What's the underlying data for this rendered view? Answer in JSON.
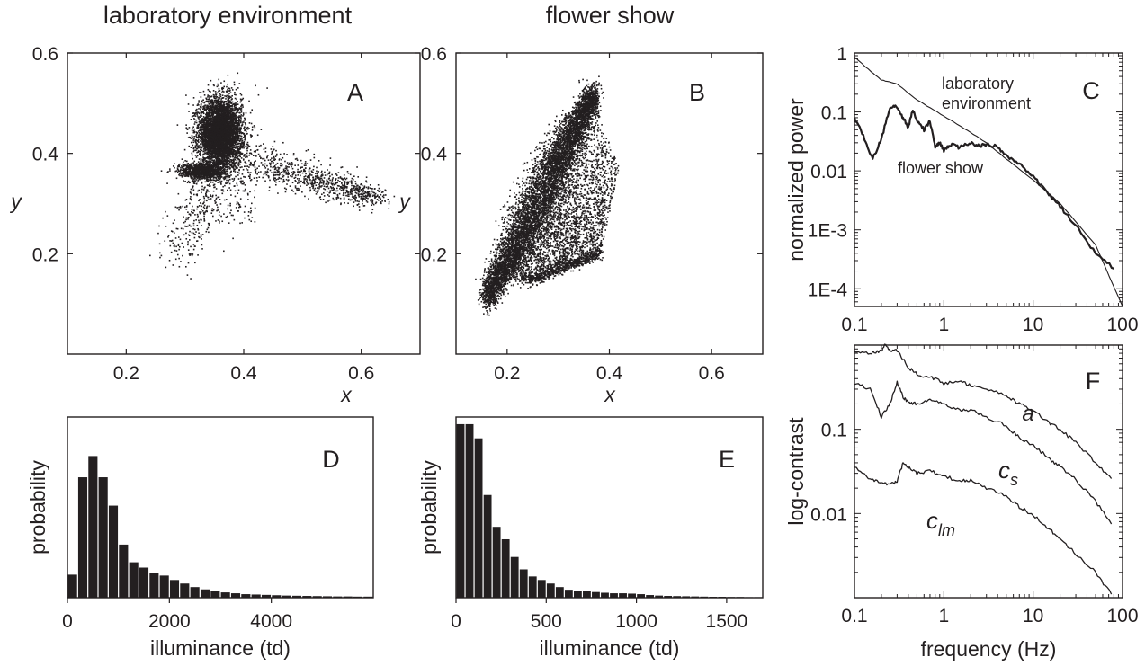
{
  "column_titles": [
    "laboratory environment",
    "flower show"
  ],
  "chart_data": [
    {
      "panel": "A",
      "type": "scatter",
      "column_title": "laboratory environment",
      "xlabel": "x",
      "ylabel": "y",
      "xlim": [
        0.1,
        0.7
      ],
      "ylim": [
        0.0,
        0.6
      ],
      "xticks": [
        0.2,
        0.4,
        0.6
      ],
      "yticks": [
        0.2,
        0.4,
        0.6
      ],
      "tick_labels_x": [
        "0.2",
        "0.4",
        "0.6"
      ],
      "tick_labels_y": [
        "0.2",
        "0.4",
        "0.6"
      ],
      "series": [
        {
          "region": "dense cluster",
          "center": [
            0.36,
            0.44
          ],
          "spread": [
            0.018,
            0.035
          ]
        },
        {
          "region": "base cluster",
          "center": [
            0.33,
            0.365
          ],
          "spread": [
            0.02,
            0.008
          ]
        },
        {
          "region": "tail to red",
          "from": [
            0.38,
            0.4
          ],
          "to": [
            0.63,
            0.31
          ]
        },
        {
          "region": "tail to blue",
          "from": [
            0.35,
            0.36
          ],
          "to": [
            0.28,
            0.19
          ]
        },
        {
          "region": "outliers",
          "points": [
            [
              0.44,
              0.53
            ],
            [
              0.42,
              0.535
            ],
            [
              0.26,
              0.365
            ],
            [
              0.27,
              0.34
            ]
          ]
        }
      ]
    },
    {
      "panel": "B",
      "type": "scatter",
      "column_title": "flower show",
      "xlabel": "x",
      "ylabel": "y",
      "xlim": [
        0.1,
        0.7
      ],
      "ylim": [
        0.0,
        0.6
      ],
      "xticks": [
        0.2,
        0.4,
        0.6
      ],
      "yticks": [
        0.2,
        0.4,
        0.6
      ],
      "tick_labels_x": [
        "0.2",
        "0.4",
        "0.6"
      ],
      "tick_labels_y": [
        "0.2",
        "0.4",
        "0.6"
      ],
      "series": [
        {
          "region": "dense band",
          "from": [
            0.16,
            0.11
          ],
          "to": [
            0.37,
            0.52
          ]
        },
        {
          "region": "spread below band",
          "vertices": [
            [
              0.19,
              0.15
            ],
            [
              0.37,
              0.5
            ],
            [
              0.42,
              0.37
            ],
            [
              0.38,
              0.19
            ],
            [
              0.24,
              0.14
            ]
          ]
        }
      ]
    },
    {
      "panel": "C",
      "type": "line",
      "xlabel": "",
      "ylabel": "normalized power",
      "xscale": "log",
      "yscale": "log",
      "xlim": [
        0.1,
        100
      ],
      "ylim": [
        5e-05,
        1
      ],
      "xticks": [
        0.1,
        1,
        10,
        100
      ],
      "yticks": [
        1,
        0.1,
        0.01,
        0.001,
        0.0001
      ],
      "tick_labels_x": [
        "0.1",
        "1",
        "10",
        "100"
      ],
      "tick_labels_y": [
        "1",
        "0.1",
        "0.01",
        "1E-3",
        "1E-4"
      ],
      "series": [
        {
          "name": "laboratory environment",
          "x": [
            0.1,
            0.15,
            0.2,
            0.3,
            0.5,
            1,
            2,
            3,
            5,
            10,
            20,
            50,
            100
          ],
          "y": [
            0.85,
            0.5,
            0.35,
            0.3,
            0.16,
            0.085,
            0.045,
            0.03,
            0.016,
            0.007,
            0.0028,
            0.00055,
            5e-05
          ]
        },
        {
          "name": "flower show",
          "x": [
            0.1,
            0.13,
            0.16,
            0.2,
            0.25,
            0.3,
            0.35,
            0.4,
            0.45,
            0.5,
            0.6,
            0.7,
            0.8,
            0.9,
            1,
            1.2,
            1.5,
            2,
            2.5,
            3,
            4,
            5,
            7,
            10,
            15,
            20,
            30,
            50,
            80
          ],
          "y": [
            0.08,
            0.035,
            0.016,
            0.035,
            0.12,
            0.12,
            0.08,
            0.055,
            0.11,
            0.07,
            0.05,
            0.07,
            0.025,
            0.03,
            0.022,
            0.028,
            0.025,
            0.03,
            0.027,
            0.028,
            0.026,
            0.018,
            0.013,
            0.008,
            0.004,
            0.0025,
            0.0012,
            0.0004,
            0.00022
          ]
        }
      ]
    },
    {
      "panel": "D",
      "type": "bar",
      "column_title": "laboratory environment",
      "xlabel": "illuminance (td)",
      "ylabel": "probability",
      "xlim": [
        0,
        6000
      ],
      "xticks": [
        0,
        2000,
        4000
      ],
      "tick_labels_x": [
        "0",
        "2000",
        "4000"
      ],
      "bin_width": 200,
      "bin_start": 0,
      "values": [
        0.13,
        0.68,
        0.8,
        0.68,
        0.52,
        0.3,
        0.2,
        0.17,
        0.14,
        0.125,
        0.1,
        0.08,
        0.06,
        0.047,
        0.037,
        0.03,
        0.025,
        0.02,
        0.018,
        0.016,
        0.014,
        0.012,
        0.011,
        0.01,
        0.009,
        0.008,
        0.007,
        0.007,
        0.006,
        0.006
      ]
    },
    {
      "panel": "E",
      "type": "bar",
      "column_title": "flower show",
      "xlabel": "illuminance (td)",
      "ylabel": "probability",
      "xlim": [
        0,
        1700
      ],
      "xticks": [
        0,
        500,
        1000,
        1500
      ],
      "tick_labels_x": [
        "0",
        "500",
        "1000",
        "1500"
      ],
      "bin_width": 50,
      "bin_start": 0,
      "values": [
        0.98,
        0.98,
        0.9,
        0.58,
        0.4,
        0.33,
        0.23,
        0.16,
        0.12,
        0.1,
        0.08,
        0.06,
        0.045,
        0.04,
        0.037,
        0.032,
        0.028,
        0.025,
        0.025,
        0.023,
        0.02,
        0.015,
        0.012,
        0.01,
        0.009,
        0.008,
        0.007,
        0.006,
        0.005,
        0.005,
        0.004,
        0.004,
        0.003,
        0.003
      ]
    },
    {
      "panel": "F",
      "type": "line",
      "xlabel": "frequency (Hz)",
      "ylabel": "log-contrast",
      "xscale": "log",
      "yscale": "log",
      "xlim": [
        0.1,
        100
      ],
      "ylim": [
        0.001,
        1
      ],
      "xticks": [
        0.1,
        1,
        10,
        100
      ],
      "yticks": [
        0.1,
        0.01
      ],
      "tick_labels_x": [
        "0.1",
        "1",
        "10",
        "100"
      ],
      "tick_labels_y": [
        "0.1",
        "0.01"
      ],
      "series": [
        {
          "name": "a",
          "x": [
            0.1,
            0.15,
            0.2,
            0.22,
            0.25,
            0.3,
            0.4,
            0.5,
            0.7,
            1,
            1.5,
            2,
            3,
            5,
            7,
            10,
            15,
            20,
            30,
            50,
            75
          ],
          "y": [
            0.85,
            0.8,
            0.85,
            1.0,
            0.85,
            0.85,
            0.55,
            0.45,
            0.42,
            0.35,
            0.38,
            0.33,
            0.3,
            0.25,
            0.2,
            0.17,
            0.12,
            0.1,
            0.07,
            0.04,
            0.026
          ]
        },
        {
          "name": "c_s",
          "x": [
            0.1,
            0.15,
            0.2,
            0.25,
            0.3,
            0.35,
            0.4,
            0.5,
            0.7,
            1,
            1.5,
            2,
            3,
            5,
            7,
            10,
            15,
            20,
            30,
            50,
            75
          ],
          "y": [
            0.35,
            0.3,
            0.14,
            0.2,
            0.37,
            0.24,
            0.21,
            0.2,
            0.22,
            0.2,
            0.17,
            0.17,
            0.14,
            0.11,
            0.08,
            0.065,
            0.045,
            0.036,
            0.025,
            0.014,
            0.0075
          ]
        },
        {
          "name": "c_lm",
          "x": [
            0.1,
            0.15,
            0.2,
            0.25,
            0.3,
            0.35,
            0.4,
            0.5,
            0.7,
            1,
            1.5,
            2,
            3,
            5,
            7,
            10,
            15,
            20,
            30,
            50,
            75
          ],
          "y": [
            0.035,
            0.026,
            0.023,
            0.022,
            0.024,
            0.04,
            0.035,
            0.03,
            0.032,
            0.028,
            0.024,
            0.025,
            0.02,
            0.016,
            0.012,
            0.0095,
            0.0066,
            0.005,
            0.0033,
            0.002,
            0.0011
          ]
        }
      ]
    }
  ],
  "annotations": {
    "C_lab_label_line1": "laboratory",
    "C_lab_label_line2": "environment",
    "C_flower_label": "flower show",
    "F_a": "a",
    "F_cs_main": "c",
    "F_cs_sub": "s",
    "F_clm_main": "c",
    "F_clm_sub": "lm"
  }
}
